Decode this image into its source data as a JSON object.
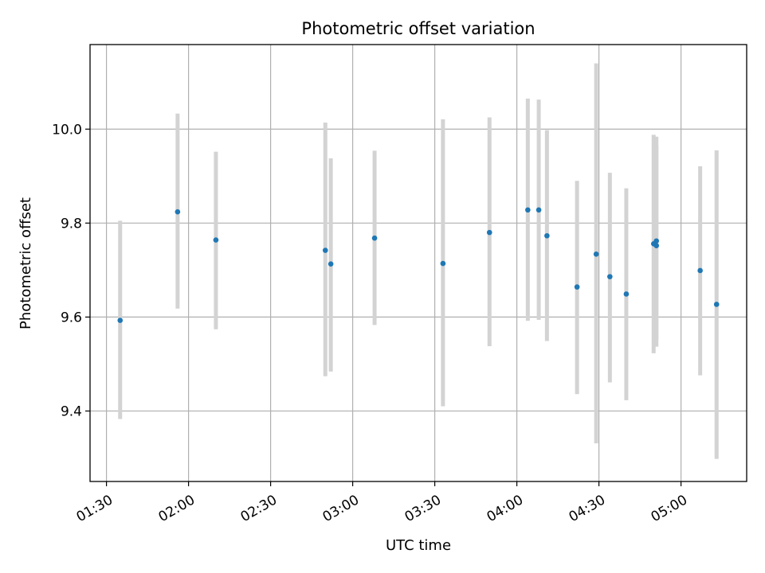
{
  "chart_data": {
    "type": "scatter",
    "title": "Photometric offset variation",
    "xlabel": "UTC time",
    "ylabel": "Photometric offset",
    "x_ticks": [
      "01:30",
      "02:00",
      "02:30",
      "03:00",
      "03:30",
      "04:00",
      "04:30",
      "05:00"
    ],
    "y_ticks": [
      "9.4",
      "9.6",
      "9.8",
      "10.0"
    ],
    "xlim": [
      "01:24",
      "05:24"
    ],
    "ylim": [
      9.25,
      10.18
    ],
    "grid": true,
    "colors": {
      "points": "#1f77b4",
      "error_bars": "#d3d3d3",
      "grid": "#b0b0b0",
      "frame": "#000000"
    },
    "series": [
      {
        "points": [
          {
            "x": "01:35",
            "y": 9.593,
            "ylow": 9.383,
            "yhigh": 9.805
          },
          {
            "x": "01:56",
            "y": 9.824,
            "ylow": 9.618,
            "yhigh": 10.033
          },
          {
            "x": "02:10",
            "y": 9.764,
            "ylow": 9.574,
            "yhigh": 9.952
          },
          {
            "x": "02:50",
            "y": 9.742,
            "ylow": 9.474,
            "yhigh": 10.014
          },
          {
            "x": "02:52",
            "y": 9.713,
            "ylow": 9.484,
            "yhigh": 9.938
          },
          {
            "x": "03:08",
            "y": 9.768,
            "ylow": 9.583,
            "yhigh": 9.954
          },
          {
            "x": "03:33",
            "y": 9.714,
            "ylow": 9.41,
            "yhigh": 10.021
          },
          {
            "x": "03:50",
            "y": 9.78,
            "ylow": 9.538,
            "yhigh": 10.025
          },
          {
            "x": "04:04",
            "y": 9.828,
            "ylow": 9.592,
            "yhigh": 10.065
          },
          {
            "x": "04:08",
            "y": 9.828,
            "ylow": 9.594,
            "yhigh": 10.063
          },
          {
            "x": "04:11",
            "y": 9.773,
            "ylow": 9.549,
            "yhigh": 9.998
          },
          {
            "x": "04:22",
            "y": 9.664,
            "ylow": 9.436,
            "yhigh": 9.89
          },
          {
            "x": "04:29",
            "y": 9.734,
            "ylow": 9.331,
            "yhigh": 10.14
          },
          {
            "x": "04:34",
            "y": 9.686,
            "ylow": 9.461,
            "yhigh": 9.907
          },
          {
            "x": "04:40",
            "y": 9.649,
            "ylow": 9.423,
            "yhigh": 9.874
          },
          {
            "x": "04:50",
            "y": 9.756,
            "ylow": 9.523,
            "yhigh": 9.988
          },
          {
            "x": "04:51",
            "y": 9.762,
            "ylow": 9.552,
            "yhigh": 9.984
          },
          {
            "x": "04:51",
            "y": 9.752,
            "ylow": 9.537,
            "yhigh": 9.965
          },
          {
            "x": "05:07",
            "y": 9.699,
            "ylow": 9.476,
            "yhigh": 9.921
          },
          {
            "x": "05:13",
            "y": 9.627,
            "ylow": 9.298,
            "yhigh": 9.955
          }
        ]
      }
    ]
  }
}
